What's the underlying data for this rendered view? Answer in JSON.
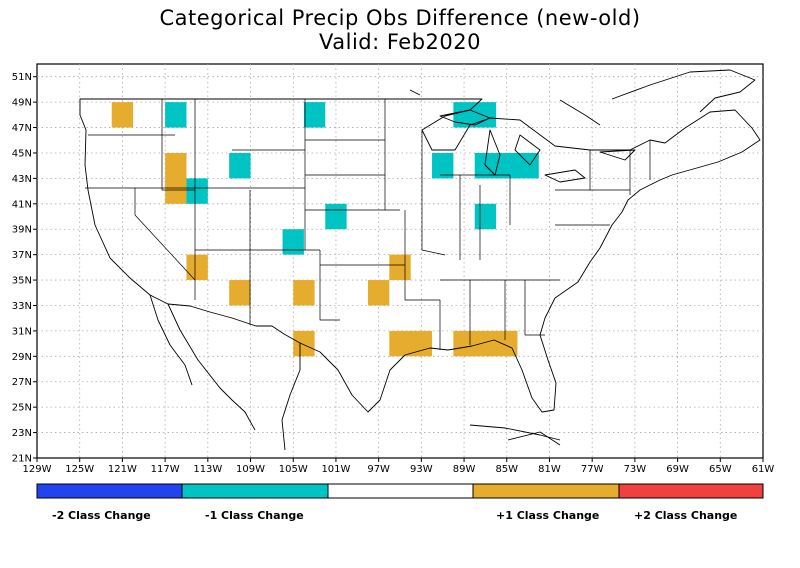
{
  "title": "Categorical Precip Obs Difference (new-old)",
  "subtitle": "Valid: Feb2020",
  "map": {
    "lon_range": [
      -129,
      -61
    ],
    "lat_range": [
      21,
      52
    ],
    "grid": true,
    "lon_ticks": [
      "129W",
      "125W",
      "121W",
      "117W",
      "113W",
      "109W",
      "105W",
      "101W",
      "97W",
      "93W",
      "89W",
      "85W",
      "81W",
      "77W",
      "73W",
      "69W",
      "65W",
      "61W"
    ],
    "lat_ticks": [
      "21N",
      "23N",
      "25N",
      "27N",
      "29N",
      "31N",
      "33N",
      "35N",
      "37N",
      "39N",
      "41N",
      "43N",
      "45N",
      "47N",
      "49N",
      "51N"
    ]
  },
  "colors": {
    "minus2": "#2244ee",
    "minus1": "#00c4c4",
    "zero": "#ffffff",
    "plus1": "#e6ac2e",
    "plus2": "#f04040"
  },
  "legend": {
    "minus2": "-2 Class Change",
    "minus1": "-1 Class Change",
    "plus1": "+1 Class Change",
    "plus2": "+2 Class Change"
  },
  "cells": [
    {
      "lon_min": -122,
      "lon_max": -120,
      "lat_min": 47,
      "lat_max": 49,
      "class": 1
    },
    {
      "lon_min": -117,
      "lon_max": -115,
      "lat_min": 47,
      "lat_max": 49,
      "class": -1
    },
    {
      "lon_min": -104,
      "lon_max": -102,
      "lat_min": 47,
      "lat_max": 49,
      "class": -1
    },
    {
      "lon_min": -90,
      "lon_max": -86,
      "lat_min": 47,
      "lat_max": 49,
      "class": -1
    },
    {
      "lon_min": -117,
      "lon_max": -115,
      "lat_min": 41,
      "lat_max": 45,
      "class": 1
    },
    {
      "lon_min": -111,
      "lon_max": -109,
      "lat_min": 43,
      "lat_max": 45,
      "class": -1
    },
    {
      "lon_min": -92,
      "lon_max": -90,
      "lat_min": 43,
      "lat_max": 45,
      "class": -1
    },
    {
      "lon_min": -88,
      "lon_max": -82,
      "lat_min": 43,
      "lat_max": 45,
      "class": -1
    },
    {
      "lon_min": -115,
      "lon_max": -113,
      "lat_min": 41,
      "lat_max": 43,
      "class": -1
    },
    {
      "lon_min": -102,
      "lon_max": -100,
      "lat_min": 39,
      "lat_max": 41,
      "class": -1
    },
    {
      "lon_min": -88,
      "lon_max": -86,
      "lat_min": 39,
      "lat_max": 41,
      "class": -1
    },
    {
      "lon_min": -106,
      "lon_max": -104,
      "lat_min": 37,
      "lat_max": 39,
      "class": -1
    },
    {
      "lon_min": -115,
      "lon_max": -113,
      "lat_min": 35,
      "lat_max": 37,
      "class": 1
    },
    {
      "lon_min": -96,
      "lon_max": -94,
      "lat_min": 35,
      "lat_max": 37,
      "class": 1
    },
    {
      "lon_min": -111,
      "lon_max": -109,
      "lat_min": 33,
      "lat_max": 35,
      "class": 1
    },
    {
      "lon_min": -105,
      "lon_max": -103,
      "lat_min": 33,
      "lat_max": 35,
      "class": 1
    },
    {
      "lon_min": -98,
      "lon_max": -96,
      "lat_min": 33,
      "lat_max": 35,
      "class": 1
    },
    {
      "lon_min": -105,
      "lon_max": -103,
      "lat_min": 29,
      "lat_max": 31,
      "class": 1
    },
    {
      "lon_min": -96,
      "lon_max": -92,
      "lat_min": 29,
      "lat_max": 31,
      "class": 1
    },
    {
      "lon_min": -90,
      "lon_max": -84,
      "lat_min": 29,
      "lat_max": 31,
      "class": 1
    }
  ]
}
